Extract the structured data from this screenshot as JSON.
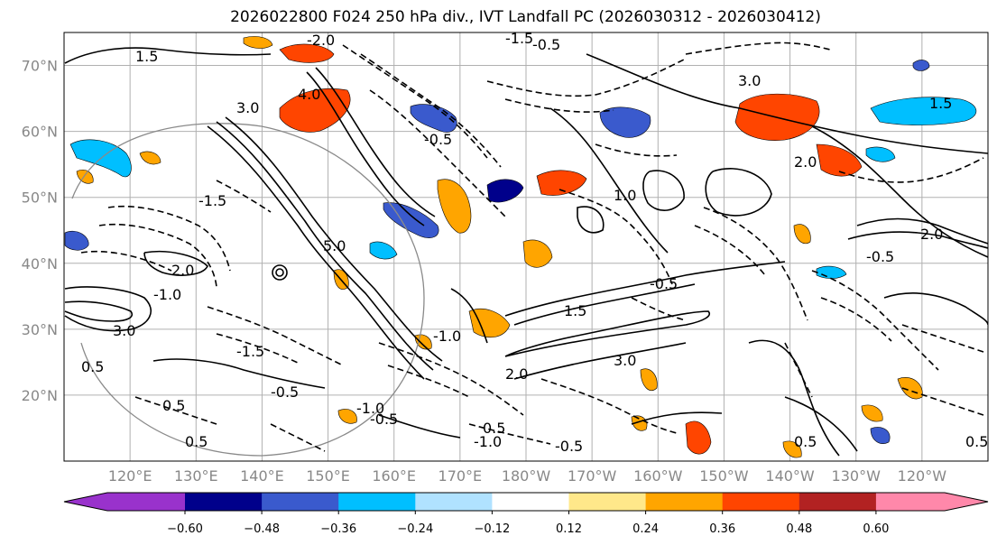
{
  "title": "2026022800 F024 250 hPa div., IVT Landfall PC (2026030312 - 2026030412)",
  "map": {
    "projection": "PlateCarree",
    "lon_range": [
      110,
      250
    ],
    "lat_range": [
      10,
      75
    ],
    "lat_ticks": [
      {
        "value": 20,
        "label": "20°N"
      },
      {
        "value": 30,
        "label": "30°N"
      },
      {
        "value": 40,
        "label": "40°N"
      },
      {
        "value": 50,
        "label": "50°N"
      },
      {
        "value": 60,
        "label": "60°N"
      },
      {
        "value": 70,
        "label": "70°N"
      }
    ],
    "lon_ticks": [
      {
        "value": 120,
        "label": "120°E"
      },
      {
        "value": 130,
        "label": "130°E"
      },
      {
        "value": 140,
        "label": "140°E"
      },
      {
        "value": 150,
        "label": "150°E"
      },
      {
        "value": 160,
        "label": "160°E"
      },
      {
        "value": 170,
        "label": "170°E"
      },
      {
        "value": 180,
        "label": "180°W"
      },
      {
        "value": 190,
        "label": "170°W"
      },
      {
        "value": 200,
        "label": "160°W"
      },
      {
        "value": 210,
        "label": "150°W"
      },
      {
        "value": 220,
        "label": "140°W"
      },
      {
        "value": 230,
        "label": "130°W"
      },
      {
        "value": 240,
        "label": "120°W"
      }
    ],
    "gridlines": true,
    "contour_labels": [
      "-2.0",
      "-1.5",
      "-1.0",
      "-0.5",
      "0.5",
      "1.0",
      "1.5",
      "2.0",
      "3.0",
      "4.0",
      "5.0"
    ]
  },
  "colorbar": {
    "extend": "both",
    "under_color": "#9932cc",
    "over_color": "#ff88aa",
    "bins": [
      "#9932cc",
      "#00008b",
      "#3a5acd",
      "#00bfff",
      "#b0e2ff",
      "#ffffff",
      "#ffe88a",
      "#ffa500",
      "#ff4500",
      "#b22222",
      "#ff88aa"
    ],
    "tick_labels": [
      "−0.60",
      "−0.48",
      "−0.36",
      "−0.24",
      "−0.12",
      "0.12",
      "0.24",
      "0.36",
      "0.48",
      "0.60"
    ]
  }
}
